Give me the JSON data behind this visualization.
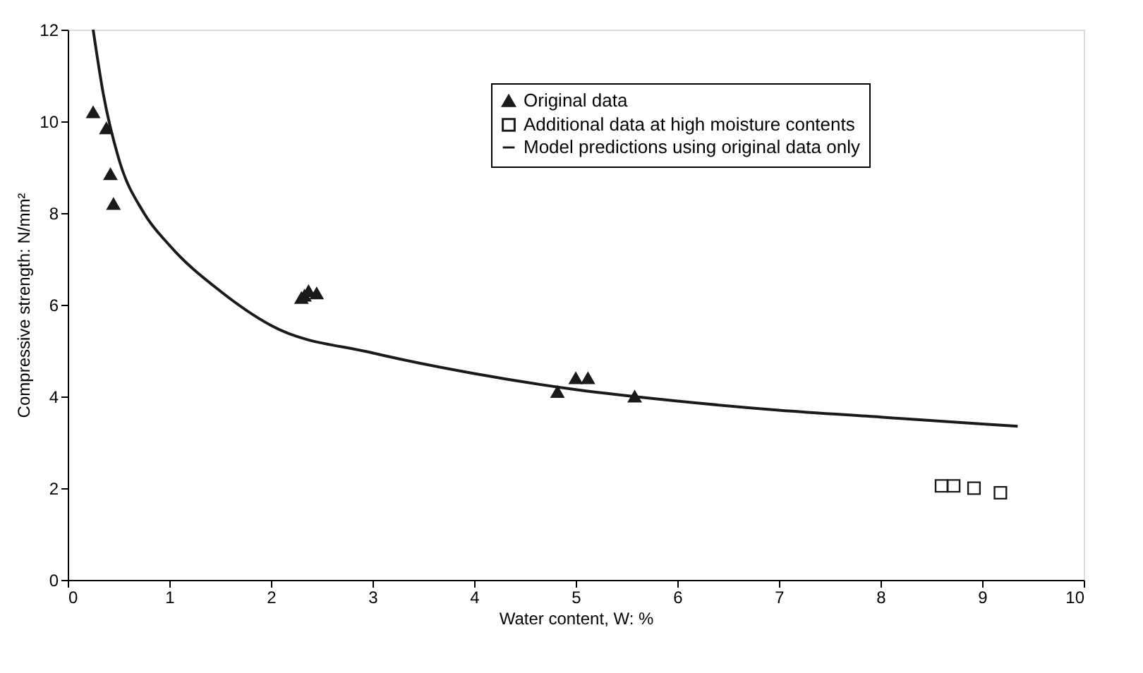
{
  "chart_data": {
    "type": "scatter",
    "xlabel": "Water content, W: %",
    "ylabel": "Compressive strength: N/mm²",
    "xlim": [
      0,
      10
    ],
    "xticks": [
      0,
      1,
      2,
      3,
      4,
      5,
      6,
      7,
      8,
      9,
      10
    ],
    "ylim": [
      0,
      12
    ],
    "yticks": [
      0,
      2,
      4,
      6,
      8,
      10,
      12
    ],
    "grid": false,
    "legend": "top right",
    "series": [
      {
        "name": "Original data",
        "marker": "triangle",
        "color": "#1a1a1a",
        "x": [
          0.25,
          0.38,
          0.42,
          0.45,
          2.3,
          2.33,
          2.37,
          2.45,
          4.82,
          5.0,
          5.12,
          5.58
        ],
        "values": [
          10.2,
          9.85,
          8.85,
          8.2,
          6.15,
          6.2,
          6.3,
          6.25,
          4.1,
          4.4,
          4.4,
          4.0
        ]
      },
      {
        "name": "Additional data at high moisture contents",
        "marker": "square",
        "color": "#1a1a1a",
        "x": [
          8.6,
          8.72,
          8.92,
          9.18
        ],
        "values": [
          2.05,
          2.05,
          2.0,
          1.9
        ]
      },
      {
        "name": "Model predictions using original data only",
        "type": "line",
        "marker": "none",
        "line_style": "solid",
        "color": "#1a1a1a",
        "x": [
          0.25,
          0.35,
          0.5,
          0.75,
          1,
          1.5,
          2,
          3,
          4,
          5,
          6,
          7,
          8,
          9,
          9.35
        ],
        "values": [
          12,
          10.6,
          9.2,
          8.0,
          7.3,
          6.3,
          5.55,
          4.95,
          4.5,
          4.15,
          3.9,
          3.7,
          3.55,
          3.4,
          3.35
        ]
      }
    ]
  }
}
